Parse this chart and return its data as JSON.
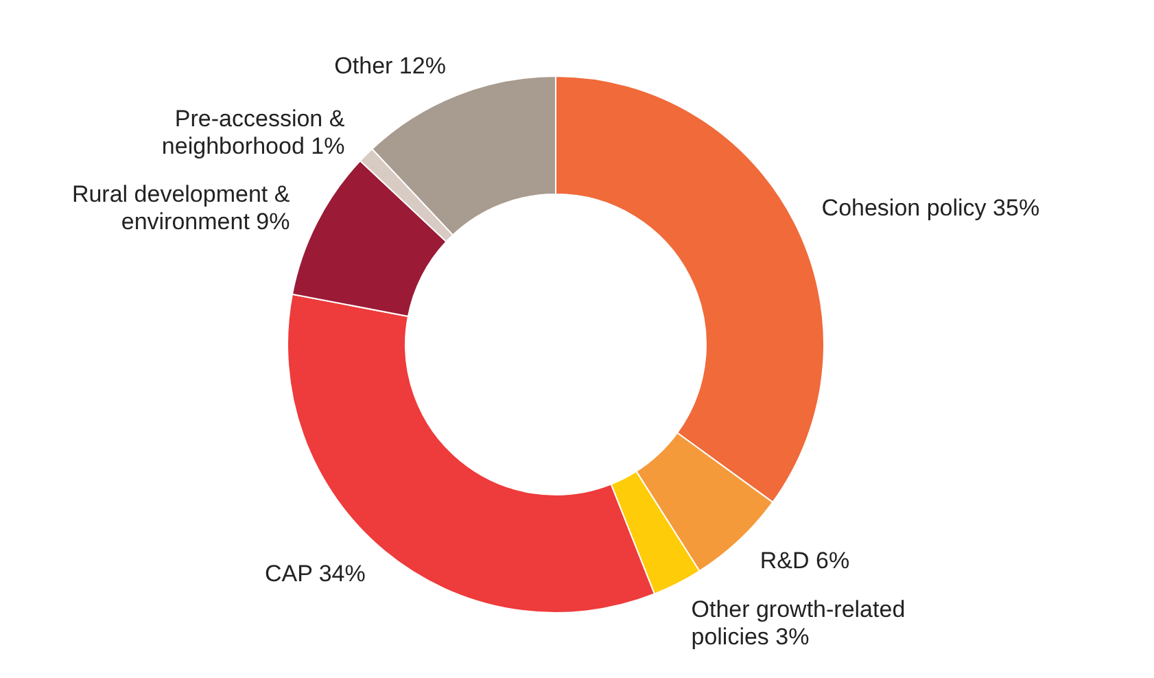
{
  "chart_data": {
    "type": "donut",
    "categories": [
      "Cohesion policy",
      "R&D",
      "Other growth-related policies",
      "CAP",
      "Rural development & environment",
      "Pre-accession & neighborhood",
      "Other"
    ],
    "values": [
      35,
      6,
      3,
      34,
      9,
      1,
      12
    ],
    "value_labels": [
      "35%",
      "6%",
      "3%",
      "34%",
      "9%",
      "1%",
      "12%"
    ],
    "colors": [
      "#f06a3a",
      "#f59a3b",
      "#ffcc0a",
      "#ee3b3b",
      "#9b1a36",
      "#d8cbc3",
      "#a89b8f"
    ],
    "legend": false
  }
}
